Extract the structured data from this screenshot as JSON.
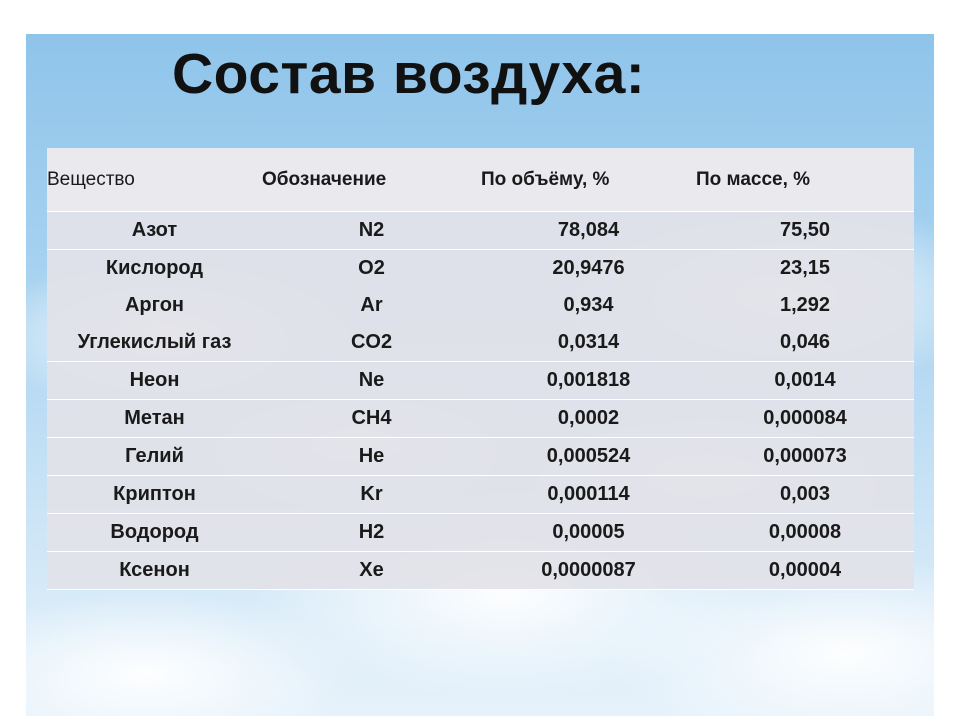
{
  "title": "Состав воздуха:",
  "table": {
    "headers": [
      "Вещество",
      "Обозначение",
      "По объёму, %",
      "По массе, %"
    ],
    "rows": [
      {
        "substance": "Азот",
        "symbol": "N2",
        "volume": "78,084",
        "mass": "75,50"
      },
      {
        "substance": "Кислород",
        "symbol": "O2",
        "volume": "20,9476",
        "mass": "23,15"
      },
      {
        "substance": "Аргон",
        "symbol": "Ar",
        "volume": "0,934",
        "mass": "1,292"
      },
      {
        "substance": "Углекислый газ",
        "symbol": "CO2",
        "volume": "0,0314",
        "mass": "0,046"
      },
      {
        "substance": "Неон",
        "symbol": "Ne",
        "volume": "0,001818",
        "mass": "0,0014"
      },
      {
        "substance": "Метан",
        "symbol": "CH4",
        "volume": "0,0002",
        "mass": "0,000084"
      },
      {
        "substance": "Гелий",
        "symbol": "He",
        "volume": "0,000524",
        "mass": "0,000073"
      },
      {
        "substance": "Криптон",
        "symbol": "Kr",
        "volume": "0,000114",
        "mass": "0,003"
      },
      {
        "substance": "Водород",
        "symbol": "H2",
        "volume": "0,00005",
        "mass": "0,00008"
      },
      {
        "substance": "Ксенон",
        "symbol": "Xe",
        "volume": "0,0000087",
        "mass": "0,00004"
      }
    ]
  }
}
